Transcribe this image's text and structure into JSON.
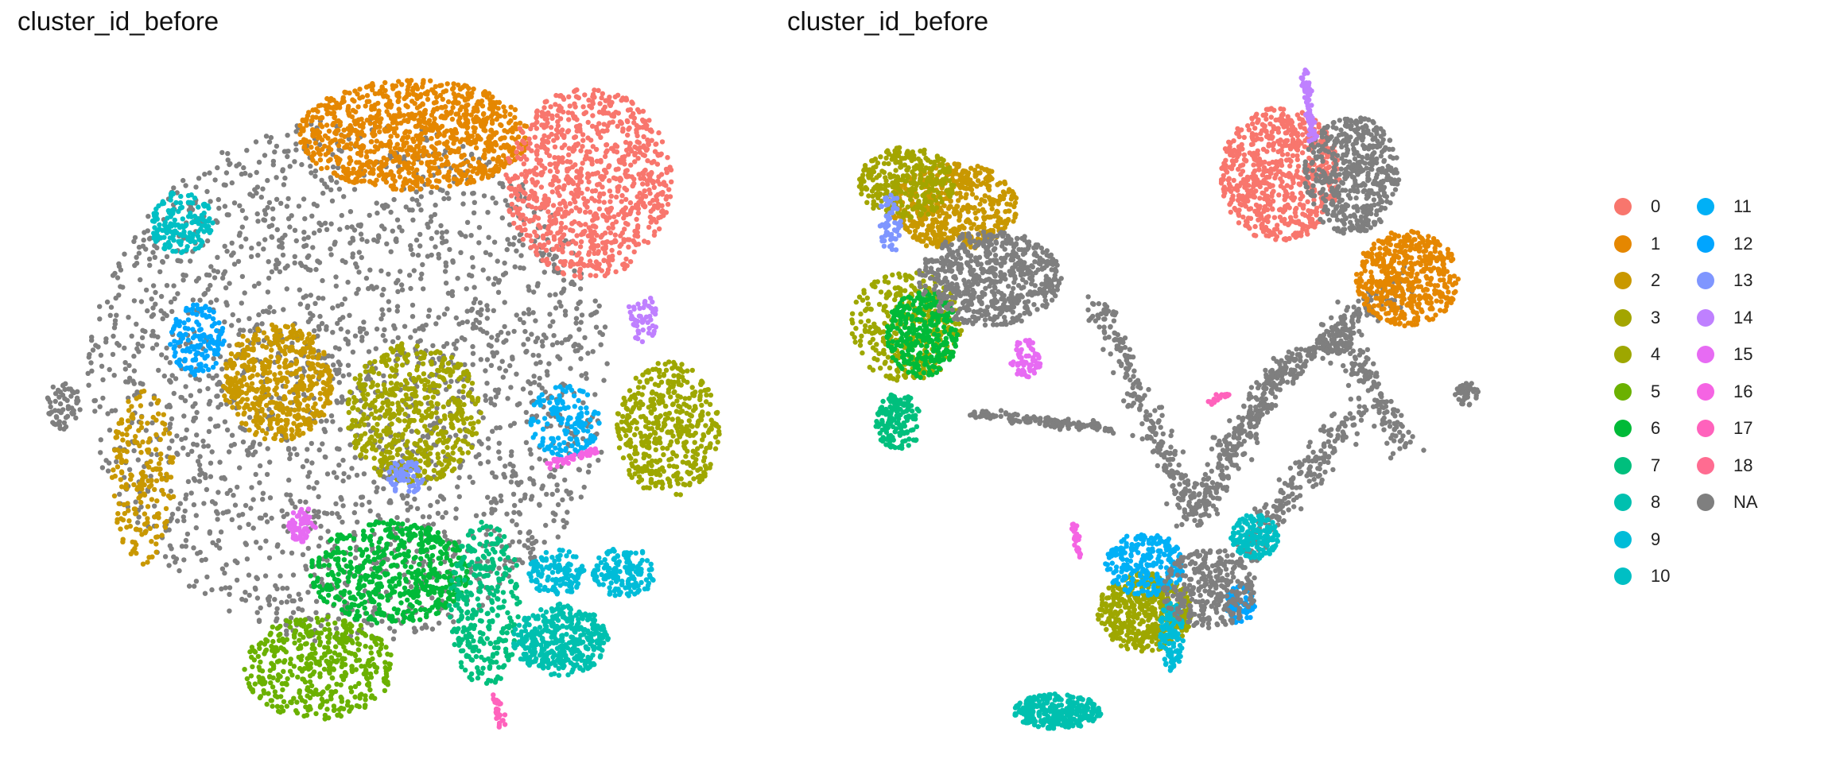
{
  "chart_data": [
    {
      "type": "scatter",
      "title": "cluster_id_before",
      "xlabel": "",
      "ylabel": "",
      "embedding": "tsne",
      "grid": false,
      "legend_position": "right",
      "category_order": [
        "0",
        "1",
        "2",
        "3",
        "4",
        "5",
        "6",
        "7",
        "8",
        "9",
        "10",
        "11",
        "12",
        "13",
        "14",
        "15",
        "16",
        "17",
        "18",
        "NA"
      ]
    },
    {
      "type": "scatter",
      "title": "cluster_id_before",
      "xlabel": "",
      "ylabel": "",
      "embedding": "umap",
      "grid": false,
      "legend_position": "right",
      "category_order": [
        "0",
        "1",
        "2",
        "3",
        "4",
        "5",
        "6",
        "7",
        "8",
        "9",
        "10",
        "11",
        "12",
        "13",
        "14",
        "15",
        "16",
        "17",
        "18",
        "NA"
      ]
    }
  ],
  "legend": {
    "title": "",
    "items": [
      {
        "label": "0",
        "color": "#F8766D"
      },
      {
        "label": "1",
        "color": "#E58700"
      },
      {
        "label": "2",
        "color": "#C99800"
      },
      {
        "label": "3",
        "color": "#A3A500"
      },
      {
        "label": "4",
        "color": "#9EA700"
      },
      {
        "label": "5",
        "color": "#6BB100"
      },
      {
        "label": "6",
        "color": "#00BA38"
      },
      {
        "label": "7",
        "color": "#00BF7D"
      },
      {
        "label": "8",
        "color": "#00C0AF"
      },
      {
        "label": "9",
        "color": "#00BCD8"
      },
      {
        "label": "10",
        "color": "#00BFC4"
      },
      {
        "label": "11",
        "color": "#00B0F6"
      },
      {
        "label": "12",
        "color": "#00A5FF"
      },
      {
        "label": "13",
        "color": "#7F96FF"
      },
      {
        "label": "14",
        "color": "#BF80FF"
      },
      {
        "label": "15",
        "color": "#E76BF3"
      },
      {
        "label": "16",
        "color": "#F564E3"
      },
      {
        "label": "17",
        "color": "#FF62BC"
      },
      {
        "label": "18",
        "color": "#FF6C91"
      },
      {
        "label": "NA",
        "color": "#7F7F7F"
      }
    ]
  }
}
